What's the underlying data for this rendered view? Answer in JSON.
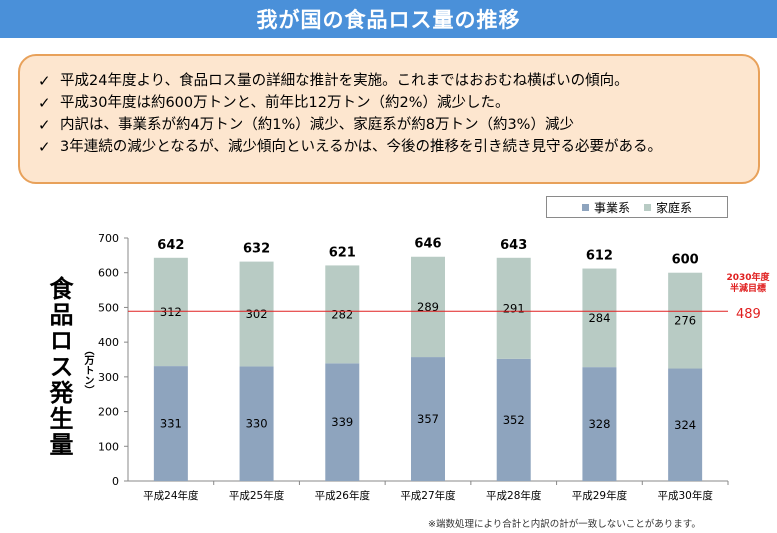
{
  "title": "我が国の食品ロス量の推移",
  "bullets": [
    {
      "mark": "✓",
      "text": "平成24年度より、食品ロス量の詳細な推計を実施。これまではおおむね横ばいの傾向。"
    },
    {
      "mark": "✓",
      "text": "平成30年度は約600万トンと、前年比12万トン（約2%）減少した。"
    },
    {
      "mark": "✓",
      "text": "内訳は、事業系が約4万トン（約1%）減少、家庭系が約8万トン（約3%）減少"
    },
    {
      "mark": "✓",
      "text": "3年連続の減少となるが、減少傾向といえるかは、今後の推移を引き続き見守る必要がある。"
    }
  ],
  "footnote": "※端数処理により合計と内訳の計が一致しないことがあります。",
  "chart_data": {
    "type": "bar",
    "stacked": true,
    "categories": [
      "平成24年度",
      "平成25年度",
      "平成26年度",
      "平成27年度",
      "平成28年度",
      "平成29年度",
      "平成30年度"
    ],
    "series": [
      {
        "name": "事業系",
        "values": [
          331,
          330,
          339,
          357,
          352,
          328,
          324
        ],
        "color": "#8ea4be"
      },
      {
        "name": "家庭系",
        "values": [
          312,
          302,
          282,
          289,
          291,
          284,
          276
        ],
        "color": "#b8cbc4"
      }
    ],
    "totals": [
      642,
      632,
      621,
      646,
      643,
      612,
      600
    ],
    "ylabel": "食品ロス発生量",
    "yunit": "（万トン）",
    "ylim": [
      0,
      700
    ],
    "yticks": [
      0,
      100,
      200,
      300,
      400,
      500,
      600,
      700
    ],
    "grid": false,
    "legend": "top-right",
    "target": {
      "value": 489,
      "label_line1": "2030年度",
      "label_line2": "半減目標",
      "value_label": "489",
      "color": "#e02020"
    }
  }
}
